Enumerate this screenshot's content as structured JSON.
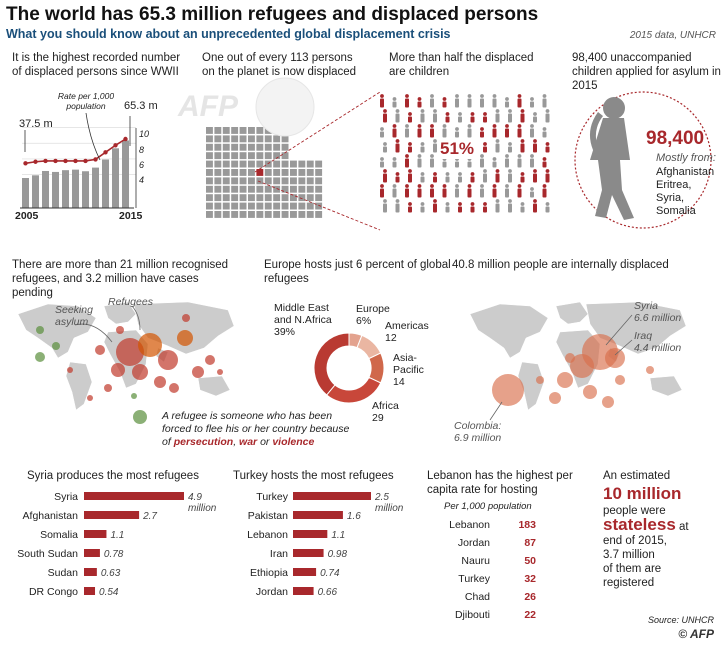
{
  "header": {
    "title": "The world has 65.3 million refugees and displaced persons",
    "subtitle": "What you should know about an unprecedented global displacement crisis",
    "data_source": "2015 data, UNHCR"
  },
  "panels": {
    "record": {
      "text": "It is the highest recorded number of displaced persons since WWII",
      "start_value": "37.5 m",
      "end_value": "65.3 m",
      "rate_label": "Rate per 1,000 population",
      "year_start": "2005",
      "year_end": "2015",
      "axis_ticks": [
        "10",
        "8",
        "6",
        "4"
      ]
    },
    "one_in": {
      "text": "One out of every 113 persons on the planet is now displaced"
    },
    "children": {
      "text": "More than half the displaced are children",
      "percent": "51%"
    },
    "unaccompanied": {
      "text": "98,400 unaccompanied children applied for asylum in 2015",
      "number": "98,400",
      "mostly_from": "Mostly from:",
      "countries": [
        "Afghanistan",
        "Eritrea,",
        "Syria,",
        "Somalia"
      ]
    },
    "recognised": {
      "text": "There are more than 21 million recognised refugees, and 3.2 million have cases pending",
      "seeking_asylum": "Seeking asylum",
      "refugees_label": "Refugees",
      "definition": "A refugee is someone who has been forced to flee his or her country because of",
      "def_w1": "persecution",
      "def_sep1": ",",
      "def_w2": "war",
      "def_or": "or",
      "def_w3": "violence"
    },
    "europe": {
      "text": "Europe hosts just 6 percent of global refugees"
    },
    "internal": {
      "text": "40.8 million people  are internally displaced",
      "syria": "Syria",
      "syria_val": "6.6 million",
      "iraq": "Iraq",
      "iraq_val": "4.4 million",
      "colombia": "Colombia:",
      "colombia_val": "6.9 million"
    },
    "produces": {
      "text": "Syria produces the most refugees"
    },
    "hosts": {
      "text": "Turkey hosts the most refugees"
    },
    "lebanon": {
      "text": "Lebanon has the highest per capita rate for hosting",
      "per_label": "Per 1,000 population"
    },
    "stateless": {
      "line1": "An estimated",
      "big": "10 million",
      "line2": "people were",
      "word": "stateless",
      "line3": "at",
      "line4": "end of 2015,",
      "line5": "3.7 million",
      "line6": "of them are",
      "line7": "registered"
    }
  },
  "footer": {
    "source": "Source: UNHCR",
    "logo": "AFP"
  },
  "watermark": "AFP",
  "colors": {
    "accent": "#a8282c",
    "navy": "#1a4f7a",
    "grey": "#8a8a8a",
    "light": "#cccccc"
  },
  "chart_data": [
    {
      "type": "line",
      "title": "Rate per 1,000 population",
      "x": [
        2005,
        2006,
        2007,
        2008,
        2009,
        2010,
        2011,
        2012,
        2013,
        2014,
        2015
      ],
      "series": [
        {
          "name": "Rate per 1,000 population",
          "values": [
            5.7,
            5.9,
            6.0,
            6.0,
            6.0,
            6.0,
            6.0,
            6.2,
            7.1,
            8.0,
            8.8
          ]
        }
      ],
      "bars": [
        37.5,
        39.5,
        42.7,
        42.0,
        43.3,
        43.7,
        42.5,
        45.2,
        51.2,
        59.5,
        65.3
      ],
      "ylim": [
        0,
        10
      ]
    },
    {
      "type": "pie",
      "title": "Europe hosts just 6 percent of global refugees",
      "categories": [
        "Middle East and N.Africa",
        "Europe",
        "Americas",
        "Asia-Pacific",
        "Africa"
      ],
      "values": [
        39,
        6,
        12,
        14,
        29
      ],
      "labels": [
        [
          "Middle East",
          "and N.Africa",
          "39%"
        ],
        [
          "Europe",
          "6%"
        ],
        [
          "Americas",
          "12"
        ],
        [
          "Asia-",
          "Pacific",
          "14"
        ],
        [
          "Africa",
          "29"
        ]
      ]
    },
    {
      "type": "bar",
      "title": "Syria produces the most refugees",
      "categories": [
        "Syria",
        "Afghanistan",
        "Somalia",
        "South Sudan",
        "Sudan",
        "DR Congo"
      ],
      "values": [
        4.9,
        2.7,
        1.1,
        0.78,
        0.63,
        0.54
      ],
      "labels": [
        "4.9",
        "2.7",
        "1.1",
        "0.78",
        "0.63",
        "0.54"
      ],
      "unit": "million"
    },
    {
      "type": "bar",
      "title": "Turkey hosts the most refugees",
      "categories": [
        "Turkey",
        "Pakistan",
        "Lebanon",
        "Iran",
        "Ethiopia",
        "Jordan"
      ],
      "values": [
        2.5,
        1.6,
        1.1,
        0.98,
        0.74,
        0.66
      ],
      "labels": [
        "2.5",
        "1.6",
        "1.1",
        "0.98",
        "0.74",
        "0.66"
      ],
      "unit": "million"
    },
    {
      "type": "table",
      "title": "Lebanon has the highest per capita rate for hosting",
      "columns": [
        "Country",
        "Per 1,000 population"
      ],
      "rows": [
        [
          "Lebanon",
          183
        ],
        [
          "Jordan",
          87
        ],
        [
          "Nauru",
          50
        ],
        [
          "Turkey",
          32
        ],
        [
          "Chad",
          26
        ],
        [
          "Djibouti",
          22
        ]
      ]
    }
  ]
}
